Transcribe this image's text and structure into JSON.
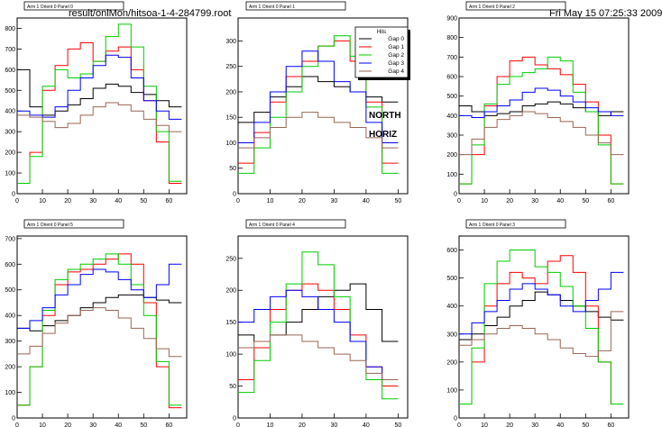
{
  "header": {
    "file": "result/onlMon/hitsoa-1-4-284799.root",
    "datetime": "Fri May 15 07:25:33 2009"
  },
  "annotations": [
    "NORTH",
    "HORIZ"
  ],
  "legend": {
    "title": "Hits",
    "entries": [
      {
        "name": "Gap 0",
        "color": "#000000"
      },
      {
        "name": "Gap 1",
        "color": "#ff0000"
      },
      {
        "name": "Gap 2",
        "color": "#00cc00"
      },
      {
        "name": "Gap 3",
        "color": "#0000ff"
      },
      {
        "name": "Gap 4",
        "color": "#996655"
      }
    ]
  },
  "chart_data": [
    {
      "type": "line",
      "title": "Arm 1 Orient 0 Panel 0",
      "xlim": [
        0,
        67
      ],
      "ylim": [
        0,
        850
      ],
      "xticks": [
        0,
        10,
        20,
        30,
        40,
        50,
        60
      ],
      "yticks": [
        0,
        100,
        200,
        300,
        400,
        500,
        600,
        700,
        800
      ],
      "series": [
        {
          "color": "#000000",
          "x": [
            0,
            5,
            10,
            15,
            20,
            25,
            30,
            35,
            40,
            45,
            50,
            55,
            60
          ],
          "y": [
            600,
            420,
            380,
            400,
            430,
            460,
            510,
            530,
            520,
            490,
            480,
            450,
            420
          ]
        },
        {
          "color": "#ff0000",
          "x": [
            0,
            5,
            10,
            15,
            20,
            25,
            30,
            35,
            40,
            45,
            50,
            55,
            60
          ],
          "y": [
            50,
            200,
            500,
            620,
            700,
            730,
            640,
            690,
            710,
            600,
            450,
            250,
            50
          ]
        },
        {
          "color": "#00cc00",
          "x": [
            0,
            5,
            10,
            15,
            20,
            25,
            30,
            35,
            40,
            45,
            50,
            55,
            60
          ],
          "y": [
            50,
            180,
            520,
            600,
            560,
            580,
            640,
            760,
            820,
            710,
            520,
            300,
            60
          ]
        },
        {
          "color": "#0000ff",
          "x": [
            0,
            5,
            10,
            15,
            20,
            25,
            30,
            35,
            40,
            45,
            50,
            55,
            60
          ],
          "y": [
            400,
            380,
            370,
            420,
            500,
            560,
            620,
            670,
            660,
            560,
            450,
            400,
            360
          ]
        },
        {
          "color": "#996655",
          "x": [
            0,
            5,
            10,
            15,
            20,
            25,
            30,
            35,
            40,
            45,
            50,
            55,
            60
          ],
          "y": [
            380,
            370,
            350,
            320,
            340,
            380,
            420,
            440,
            430,
            400,
            360,
            330,
            300
          ]
        }
      ]
    },
    {
      "type": "line",
      "title": "Arm 1 Orient 0 Panel 1",
      "xlim": [
        0,
        53
      ],
      "ylim": [
        0,
        345
      ],
      "xticks": [
        0,
        10,
        20,
        30,
        40,
        50
      ],
      "yticks": [
        0,
        50,
        100,
        150,
        200,
        250,
        300
      ],
      "series": [
        {
          "color": "#000000",
          "x": [
            0,
            5,
            10,
            15,
            20,
            25,
            30,
            35,
            40,
            45
          ],
          "y": [
            140,
            160,
            190,
            210,
            230,
            220,
            210,
            200,
            190,
            180
          ]
        },
        {
          "color": "#ff0000",
          "x": [
            0,
            5,
            10,
            15,
            20,
            25,
            30,
            35,
            40,
            45
          ],
          "y": [
            60,
            120,
            180,
            230,
            260,
            290,
            300,
            260,
            180,
            60
          ]
        },
        {
          "color": "#00cc00",
          "x": [
            0,
            5,
            10,
            15,
            20,
            25,
            30,
            35,
            40,
            45
          ],
          "y": [
            40,
            90,
            150,
            200,
            250,
            290,
            310,
            270,
            170,
            40
          ]
        },
        {
          "color": "#0000ff",
          "x": [
            0,
            5,
            10,
            15,
            20,
            25,
            30,
            35,
            40,
            45
          ],
          "y": [
            100,
            140,
            200,
            250,
            280,
            260,
            220,
            200,
            140,
            100
          ]
        },
        {
          "color": "#996655",
          "x": [
            0,
            5,
            10,
            15,
            20,
            25,
            30,
            35,
            40,
            45
          ],
          "y": [
            90,
            110,
            130,
            150,
            160,
            150,
            140,
            130,
            110,
            90
          ]
        }
      ]
    },
    {
      "type": "line",
      "title": "Arm 1 Orient 0 Panel 2",
      "xlim": [
        0,
        67
      ],
      "ylim": [
        0,
        900
      ],
      "xticks": [
        0,
        10,
        20,
        30,
        40,
        50,
        60
      ],
      "yticks": [
        0,
        100,
        200,
        300,
        400,
        500,
        600,
        700,
        800,
        900
      ],
      "series": [
        {
          "color": "#000000",
          "x": [
            0,
            5,
            10,
            15,
            20,
            25,
            30,
            35,
            40,
            45,
            50,
            55,
            60
          ],
          "y": [
            450,
            420,
            400,
            410,
            420,
            450,
            460,
            470,
            460,
            440,
            420,
            400,
            420
          ]
        },
        {
          "color": "#ff0000",
          "x": [
            0,
            5,
            10,
            15,
            20,
            25,
            30,
            35,
            40,
            45,
            50,
            55,
            60
          ],
          "y": [
            50,
            200,
            450,
            600,
            680,
            700,
            660,
            640,
            610,
            560,
            470,
            300,
            50
          ]
        },
        {
          "color": "#00cc00",
          "x": [
            0,
            5,
            10,
            15,
            20,
            25,
            30,
            35,
            40,
            45,
            50,
            55,
            60
          ],
          "y": [
            50,
            250,
            460,
            560,
            600,
            620,
            640,
            700,
            680,
            520,
            420,
            250,
            50
          ]
        },
        {
          "color": "#0000ff",
          "x": [
            0,
            5,
            10,
            15,
            20,
            25,
            30,
            35,
            40,
            45,
            50,
            55,
            60
          ],
          "y": [
            400,
            390,
            420,
            450,
            480,
            520,
            540,
            530,
            500,
            470,
            440,
            420,
            400
          ]
        },
        {
          "color": "#996655",
          "x": [
            0,
            5,
            10,
            15,
            20,
            25,
            30,
            35,
            40,
            45,
            50,
            55,
            60
          ],
          "y": [
            200,
            280,
            340,
            380,
            400,
            420,
            410,
            390,
            370,
            340,
            300,
            260,
            200
          ]
        }
      ]
    },
    {
      "type": "line",
      "title": "Arm 1 Orient 0 Panel 3",
      "xlim": [
        0,
        67
      ],
      "ylim": [
        0,
        650
      ],
      "xticks": [
        0,
        10,
        20,
        30,
        40,
        50,
        60
      ],
      "yticks": [
        0,
        100,
        200,
        300,
        400,
        500,
        600
      ],
      "series": [
        {
          "color": "#000000",
          "x": [
            0,
            5,
            10,
            15,
            20,
            25,
            30,
            35,
            40,
            45,
            50,
            55,
            60
          ],
          "y": [
            280,
            300,
            330,
            360,
            400,
            420,
            450,
            440,
            420,
            400,
            380,
            360,
            350
          ]
        },
        {
          "color": "#ff0000",
          "x": [
            0,
            5,
            10,
            15,
            20,
            25,
            30,
            35,
            40,
            45,
            50,
            55,
            60
          ],
          "y": [
            50,
            200,
            400,
            480,
            520,
            500,
            480,
            560,
            580,
            520,
            400,
            200,
            50
          ]
        },
        {
          "color": "#00cc00",
          "x": [
            0,
            5,
            10,
            15,
            20,
            25,
            30,
            35,
            40,
            45,
            50,
            55,
            60
          ],
          "y": [
            50,
            250,
            480,
            560,
            600,
            600,
            540,
            520,
            470,
            400,
            320,
            200,
            50
          ]
        },
        {
          "color": "#0000ff",
          "x": [
            0,
            5,
            10,
            15,
            20,
            25,
            30,
            35,
            40,
            45,
            50,
            55,
            60
          ],
          "y": [
            300,
            340,
            380,
            420,
            460,
            480,
            460,
            440,
            400,
            380,
            420,
            460,
            520
          ]
        },
        {
          "color": "#996655",
          "x": [
            0,
            5,
            10,
            15,
            20,
            25,
            30,
            35,
            40,
            45,
            50,
            55,
            60
          ],
          "y": [
            260,
            280,
            300,
            320,
            330,
            320,
            300,
            280,
            250,
            230,
            220,
            240,
            380
          ]
        }
      ]
    },
    {
      "type": "line",
      "title": "Arm 1 Orient 0 Panel 4",
      "xlim": [
        0,
        53
      ],
      "ylim": [
        0,
        285
      ],
      "xticks": [
        0,
        10,
        20,
        30,
        40,
        50
      ],
      "yticks": [
        0,
        50,
        100,
        150,
        200,
        250
      ],
      "series": [
        {
          "color": "#000000",
          "x": [
            0,
            5,
            10,
            15,
            20,
            25,
            30,
            35,
            40,
            45
          ],
          "y": [
            130,
            120,
            130,
            150,
            170,
            190,
            200,
            210,
            170,
            120
          ]
        },
        {
          "color": "#ff0000",
          "x": [
            0,
            5,
            10,
            15,
            20,
            25,
            30,
            35,
            40,
            45
          ],
          "y": [
            60,
            110,
            170,
            200,
            210,
            200,
            170,
            130,
            80,
            50
          ]
        },
        {
          "color": "#00cc00",
          "x": [
            0,
            5,
            10,
            15,
            20,
            25,
            30,
            35,
            40,
            45
          ],
          "y": [
            40,
            90,
            150,
            210,
            260,
            240,
            190,
            120,
            60,
            30
          ]
        },
        {
          "color": "#0000ff",
          "x": [
            0,
            5,
            10,
            15,
            20,
            25,
            30,
            35,
            40,
            45
          ],
          "y": [
            150,
            170,
            190,
            200,
            190,
            170,
            150,
            120,
            80,
            60
          ]
        },
        {
          "color": "#996655",
          "x": [
            0,
            5,
            10,
            15,
            20,
            25,
            30,
            35,
            40,
            45
          ],
          "y": [
            110,
            120,
            130,
            130,
            120,
            110,
            100,
            90,
            70,
            60
          ]
        }
      ]
    },
    {
      "type": "line",
      "title": "Arm 1 Orient 0 Panel 5",
      "xlim": [
        0,
        67
      ],
      "ylim": [
        0,
        710
      ],
      "xticks": [
        0,
        10,
        20,
        30,
        40,
        50,
        60
      ],
      "yticks": [
        0,
        100,
        200,
        300,
        400,
        500,
        600,
        700
      ],
      "series": [
        {
          "color": "#000000",
          "x": [
            0,
            5,
            10,
            15,
            20,
            25,
            30,
            35,
            40,
            45,
            50,
            55,
            60
          ],
          "y": [
            350,
            340,
            360,
            380,
            400,
            430,
            450,
            470,
            480,
            480,
            470,
            460,
            450
          ]
        },
        {
          "color": "#ff0000",
          "x": [
            0,
            5,
            10,
            15,
            20,
            25,
            30,
            35,
            40,
            45,
            50,
            55,
            60
          ],
          "y": [
            50,
            200,
            400,
            520,
            570,
            580,
            600,
            620,
            640,
            600,
            450,
            200,
            40
          ]
        },
        {
          "color": "#00cc00",
          "x": [
            0,
            5,
            10,
            15,
            20,
            25,
            30,
            35,
            40,
            45,
            50,
            55,
            60
          ],
          "y": [
            50,
            200,
            420,
            540,
            580,
            600,
            620,
            640,
            600,
            520,
            400,
            220,
            50
          ]
        },
        {
          "color": "#0000ff",
          "x": [
            0,
            5,
            10,
            15,
            20,
            25,
            30,
            35,
            40,
            45,
            50,
            55,
            60
          ],
          "y": [
            350,
            380,
            430,
            480,
            520,
            560,
            580,
            570,
            540,
            500,
            470,
            520,
            600
          ]
        },
        {
          "color": "#996655",
          "x": [
            0,
            5,
            10,
            15,
            20,
            25,
            30,
            35,
            40,
            45,
            50,
            55,
            60
          ],
          "y": [
            250,
            280,
            330,
            370,
            400,
            420,
            430,
            420,
            390,
            350,
            310,
            270,
            240
          ]
        }
      ]
    }
  ]
}
